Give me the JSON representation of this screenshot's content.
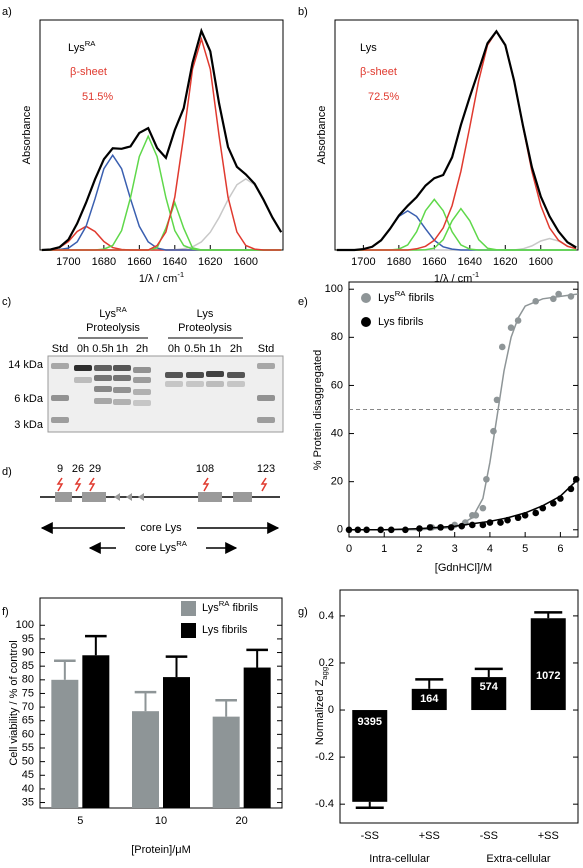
{
  "panel_labels": [
    "a)",
    "b)",
    "c)",
    "d)",
    "e)",
    "f)",
    "g)"
  ],
  "chart_data": [
    {
      "type": "line",
      "title": {
        "text": "Lys",
        "sup": "RA"
      },
      "annotations": [
        "β-sheet",
        "51.5%"
      ],
      "annotation_color": "#e03a2f",
      "y_label": "Absorbance",
      "x_label": {
        "text": "1/λ / cm",
        "sup": "-1"
      },
      "xlim": [
        1716,
        1579
      ],
      "xticks": [
        1700,
        1680,
        1660,
        1640,
        1620,
        1600
      ],
      "ylim": [
        0,
        0.97
      ],
      "x": [
        1715,
        1710,
        1705,
        1700,
        1695,
        1690,
        1685,
        1680,
        1675,
        1670,
        1665,
        1660,
        1655,
        1650,
        1645,
        1640,
        1635,
        1630,
        1625,
        1620,
        1615,
        1610,
        1605,
        1600,
        1595,
        1590,
        1585,
        1580
      ],
      "series": [
        {
          "color": "#c8c8c8",
          "values": [
            0,
            0,
            0,
            0,
            0,
            0,
            0,
            0,
            0,
            0,
            0,
            0,
            0,
            0,
            0,
            0.001,
            0.006,
            0.013,
            0.034,
            0.075,
            0.137,
            0.212,
            0.275,
            0.3,
            0.275,
            0.212,
            0.137,
            0.075
          ]
        },
        {
          "color": "#e03a2f",
          "values": [
            0,
            0.002,
            0.01,
            0.036,
            0.078,
            0.1,
            0.078,
            0.036,
            0.01,
            0.002,
            0,
            0,
            0,
            0,
            0,
            0,
            0,
            0,
            0,
            0,
            0,
            0,
            0,
            0,
            0,
            0,
            0,
            0
          ]
        },
        {
          "color": "#3a5fb0",
          "values": [
            0,
            0,
            0.002,
            0.008,
            0.034,
            0.1,
            0.216,
            0.343,
            0.4,
            0.343,
            0.216,
            0.1,
            0.034,
            0.008,
            0,
            0,
            0,
            0,
            0,
            0,
            0,
            0,
            0,
            0,
            0,
            0,
            0,
            0
          ]
        },
        {
          "color": "#5fd84a",
          "values": [
            0,
            0,
            0,
            0,
            0,
            0,
            0,
            0.004,
            0.019,
            0.082,
            0.221,
            0.394,
            0.48,
            0.394,
            0.221,
            0.082,
            0.019,
            0.004,
            0,
            0,
            0,
            0,
            0,
            0,
            0,
            0,
            0,
            0
          ]
        },
        {
          "color": "#5fd84a",
          "values": [
            0,
            0,
            0,
            0,
            0,
            0,
            0,
            0,
            0,
            0,
            0,
            0,
            0,
            0.009,
            0.092,
            0.2,
            0.092,
            0.009,
            0,
            0,
            0,
            0,
            0,
            0,
            0,
            0,
            0,
            0
          ]
        },
        {
          "color": "#e03a2f",
          "values": [
            0,
            0,
            0,
            0,
            0,
            0,
            0,
            0,
            0,
            0,
            0,
            0,
            0,
            0.019,
            0.076,
            0.223,
            0.481,
            0.763,
            0.89,
            0.763,
            0.481,
            0.223,
            0.076,
            0.019,
            0.004,
            0,
            0,
            0
          ]
        },
        {
          "color": "#000000",
          "values": [
            0,
            0.002,
            0.012,
            0.044,
            0.112,
            0.2,
            0.298,
            0.383,
            0.429,
            0.427,
            0.437,
            0.494,
            0.514,
            0.43,
            0.389,
            0.506,
            0.598,
            0.789,
            0.924,
            0.838,
            0.618,
            0.435,
            0.351,
            0.319,
            0.279,
            0.212,
            0.137,
            0.075
          ]
        }
      ]
    },
    {
      "type": "line",
      "title": {
        "text": "Lys"
      },
      "annotations": [
        "β-sheet",
        "72.5%"
      ],
      "annotation_color": "#e03a2f",
      "y_label": "Absorbance",
      "x_label": {
        "text": "1/λ / cm",
        "sup": "-1"
      },
      "xlim": [
        1716,
        1579
      ],
      "xticks": [
        1700,
        1680,
        1660,
        1640,
        1620,
        1600
      ],
      "ylim": [
        0,
        1
      ],
      "x": [
        1715,
        1710,
        1705,
        1700,
        1695,
        1690,
        1685,
        1680,
        1675,
        1670,
        1665,
        1660,
        1655,
        1650,
        1645,
        1640,
        1635,
        1630,
        1625,
        1620,
        1615,
        1610,
        1605,
        1600,
        1595,
        1590,
        1585,
        1580
      ],
      "series": [
        {
          "color": "#c8c8c8",
          "values": [
            0,
            0,
            0,
            0,
            0,
            0,
            0,
            0,
            0,
            0,
            0,
            0,
            0,
            0,
            0,
            0,
            0,
            0,
            0,
            0,
            0,
            0.005,
            0.018,
            0.039,
            0.05,
            0.039,
            0.018,
            0.005
          ]
        },
        {
          "color": "#3a5fb0",
          "values": [
            0,
            0,
            0,
            0.004,
            0.014,
            0.042,
            0.092,
            0.146,
            0.17,
            0.146,
            0.092,
            0.042,
            0.014,
            0.004,
            0,
            0,
            0,
            0,
            0,
            0,
            0,
            0,
            0,
            0,
            0,
            0,
            0,
            0
          ]
        },
        {
          "color": "#5fd84a",
          "values": [
            0,
            0,
            0,
            0,
            0,
            0,
            0,
            0.004,
            0.022,
            0.079,
            0.171,
            0.22,
            0.171,
            0.079,
            0.022,
            0.004,
            0,
            0,
            0,
            0,
            0,
            0,
            0,
            0,
            0,
            0,
            0,
            0
          ]
        },
        {
          "color": "#5fd84a",
          "values": [
            0,
            0,
            0,
            0,
            0,
            0,
            0,
            0,
            0,
            0,
            0.001,
            0.008,
            0.045,
            0.127,
            0.18,
            0.127,
            0.045,
            0.008,
            0.001,
            0,
            0,
            0,
            0,
            0,
            0,
            0,
            0,
            0
          ]
        },
        {
          "color": "#e03a2f",
          "values": [
            0,
            0,
            0,
            0,
            0,
            0,
            0,
            0,
            0,
            0.005,
            0.016,
            0.042,
            0.096,
            0.193,
            0.342,
            0.535,
            0.736,
            0.891,
            0.95,
            0.891,
            0.736,
            0.535,
            0.342,
            0.193,
            0.096,
            0.042,
            0.016,
            0.006
          ]
        },
        {
          "color": "#000000",
          "values": [
            0,
            0,
            0,
            0.004,
            0.014,
            0.042,
            0.092,
            0.15,
            0.192,
            0.23,
            0.28,
            0.312,
            0.326,
            0.403,
            0.544,
            0.666,
            0.781,
            0.899,
            0.951,
            0.891,
            0.736,
            0.54,
            0.36,
            0.232,
            0.146,
            0.081,
            0.034,
            0.011
          ]
        }
      ]
    },
    {
      "type": "scatter",
      "y_label": "% Protein disaggregated",
      "x_label": "[GdnHCl]/M",
      "xlim": [
        0,
        6.5
      ],
      "xticks": [
        0,
        1,
        2,
        3,
        4,
        5,
        6
      ],
      "ylim": [
        -3,
        103
      ],
      "yticks": [
        0,
        20,
        40,
        60,
        80,
        100
      ],
      "hline": 50,
      "legend": "upper-left",
      "series": [
        {
          "name": {
            "text": "Lys",
            "sup": "RA",
            "after": " fibrils"
          },
          "color": "#8e9597",
          "x": [
            2.35,
            2.6,
            3.0,
            3.3,
            3.5,
            3.6,
            3.8,
            3.9,
            4.1,
            4.2,
            4.35,
            4.6,
            4.8,
            5.3,
            5.8,
            5.95,
            6.3
          ],
          "values": [
            1,
            1,
            2,
            3,
            6,
            6,
            9,
            21,
            41,
            54,
            76,
            84,
            87,
            95,
            96,
            98,
            97
          ],
          "fit_x": [
            0,
            1,
            2,
            3,
            3.5,
            3.8,
            4,
            4.2,
            4.4,
            4.6,
            4.8,
            5,
            5.5,
            6,
            6.5
          ],
          "fit_values": [
            0,
            0,
            0,
            1,
            5,
            13,
            28,
            47,
            66,
            80,
            88,
            93,
            96,
            97,
            98
          ]
        },
        {
          "name": {
            "text": "Lys fibrils"
          },
          "color": "#000000",
          "x": [
            0,
            0.25,
            0.5,
            0.9,
            1.2,
            1.6,
            2,
            2.3,
            2.6,
            2.9,
            3.2,
            3.5,
            3.8,
            4,
            4.3,
            4.5,
            4.8,
            5,
            5.3,
            5.5,
            5.8,
            6,
            6.3,
            6.45
          ],
          "values": [
            0,
            0,
            0,
            0,
            0,
            0,
            0.5,
            1,
            1,
            1,
            1.5,
            2,
            2,
            3,
            3,
            4,
            5,
            6,
            7,
            9,
            11,
            13,
            17,
            21
          ],
          "fit_x": [
            0,
            1,
            2,
            3,
            3.5,
            4,
            4.5,
            5,
            5.5,
            6,
            6.5
          ],
          "fit_values": [
            0,
            0,
            0.5,
            1.5,
            2.5,
            3.5,
            5,
            7,
            10,
            14,
            21
          ]
        }
      ]
    },
    {
      "type": "bar",
      "y_label": "Cell viability / % of control",
      "x_label": "[Protein]/μM",
      "categories": [
        "5",
        "10",
        "20"
      ],
      "ylim": [
        33,
        110
      ],
      "yticks": [
        35,
        40,
        45,
        50,
        55,
        60,
        65,
        70,
        75,
        80,
        85,
        90,
        95,
        100
      ],
      "legend": "upper-right",
      "series": [
        {
          "name": {
            "text": "Lys",
            "sup": "RA",
            "after": " fibrils"
          },
          "color": "#8e9597",
          "values": [
            80,
            68.5,
            66.5
          ],
          "errors": [
            7,
            7,
            6
          ]
        },
        {
          "name": {
            "text": "Lys fibrils"
          },
          "color": "#000000",
          "values": [
            89,
            81,
            84.5
          ],
          "errors": [
            7,
            7.5,
            6.5
          ]
        }
      ]
    },
    {
      "type": "bar",
      "y_label": {
        "text": "Normalized Z",
        "sub": "agg"
      },
      "categories": [
        "-SS",
        "+SS",
        "-SS",
        "+SS"
      ],
      "groups": [
        "Intra-cellular",
        "Extra-cellular"
      ],
      "ylim": [
        -0.48,
        0.51
      ],
      "yticks": [
        -0.4,
        -0.2,
        0,
        0.2,
        0.4
      ],
      "series": [
        {
          "color": "#000000",
          "values": [
            -0.39,
            0.09,
            0.14,
            0.39
          ],
          "errors": [
            0.025,
            0.04,
            0.035,
            0.025
          ],
          "bar_labels": [
            9395,
            164,
            574,
            1072
          ]
        }
      ]
    }
  ],
  "gel": {
    "groups": [
      {
        "title": {
          "text": "Lys",
          "sup": "RA"
        },
        "subtitle": "Proteolysis"
      },
      {
        "title": {
          "text": "Lys"
        },
        "subtitle": "Proteolysis"
      }
    ],
    "lanes": [
      "Std",
      "0h",
      "0.5h",
      "1h",
      "2h",
      "0h",
      "0.5h",
      "1h",
      "2h",
      "Std"
    ],
    "markers": [
      "14 kDa",
      "6 kDa",
      "3 kDa"
    ]
  },
  "diagram": {
    "residues": [
      9,
      26,
      29,
      108,
      123
    ],
    "cores": [
      {
        "text": "core Lys"
      },
      {
        "text": "core Lys",
        "sup": "RA"
      }
    ]
  }
}
